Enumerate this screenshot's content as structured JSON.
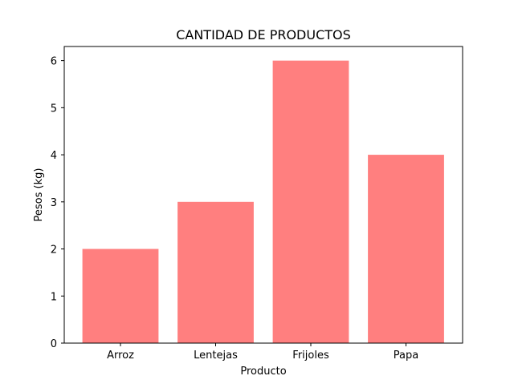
{
  "chart_data": {
    "type": "bar",
    "title": "CANTIDAD DE PRODUCTOS",
    "xlabel": "Producto",
    "ylabel": "Pesos (kg)",
    "categories": [
      "Arroz",
      "Lentejas",
      "Frijoles",
      "Papa"
    ],
    "values": [
      2,
      3,
      6,
      4
    ],
    "ylim": [
      0,
      6.3
    ],
    "yticks": [
      0,
      1,
      2,
      3,
      4,
      5,
      6
    ],
    "bar_color": "#ff7f7f",
    "grid": false,
    "legend": "none"
  }
}
